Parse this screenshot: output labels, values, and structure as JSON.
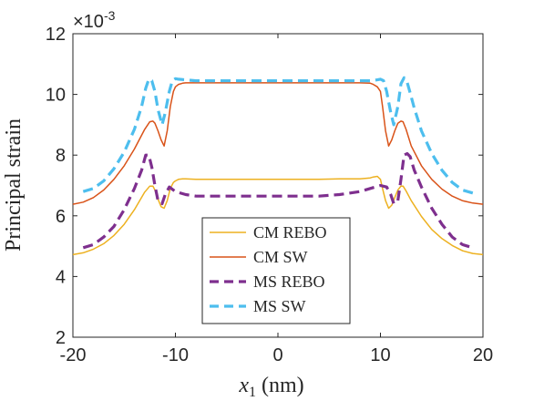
{
  "chart_data": {
    "type": "line",
    "xlabel_var": "x",
    "xlabel_sub": "1",
    "xlabel_unit": " (nm)",
    "ylabel": "Principal strain",
    "scale_prefix": "×10",
    "scale_exp": "-3",
    "xlim": [
      -20,
      20
    ],
    "ylim": [
      2,
      12
    ],
    "xticks": [
      -20,
      -10,
      0,
      10,
      20
    ],
    "yticks": [
      2,
      4,
      6,
      8,
      10,
      12
    ],
    "grid": false,
    "legend_position": "bottom-center",
    "series": [
      {
        "name": "CM REBO",
        "color": "#EDB120",
        "style": "solid",
        "x": [
          -20,
          -19,
          -18,
          -17,
          -16,
          -15,
          -14,
          -13,
          -12.5,
          -12.2,
          -12,
          -11.7,
          -11.4,
          -11.1,
          -10.8,
          -10.5,
          -10.2,
          -10,
          -9.7,
          -9.3,
          -9,
          -8,
          -6,
          -4,
          -2,
          0,
          2,
          4,
          6,
          8,
          9,
          9.3,
          9.7,
          10,
          10.2,
          10.5,
          10.8,
          11.1,
          11.4,
          11.7,
          12,
          12.2,
          12.5,
          13,
          14,
          15,
          16,
          17,
          18,
          19,
          20
        ],
        "y": [
          4.72,
          4.78,
          4.9,
          5.08,
          5.35,
          5.72,
          6.2,
          6.78,
          6.98,
          6.98,
          6.85,
          6.55,
          6.3,
          6.25,
          6.5,
          6.9,
          7.1,
          7.15,
          7.2,
          7.22,
          7.22,
          7.2,
          7.2,
          7.2,
          7.2,
          7.2,
          7.2,
          7.2,
          7.22,
          7.22,
          7.25,
          7.28,
          7.3,
          7.2,
          6.9,
          6.5,
          6.25,
          6.35,
          6.6,
          6.85,
          6.98,
          6.98,
          6.82,
          6.5,
          5.98,
          5.55,
          5.25,
          5.02,
          4.85,
          4.76,
          4.72
        ]
      },
      {
        "name": "CM SW",
        "color": "#D95319",
        "style": "solid",
        "x": [
          -20,
          -19,
          -18,
          -17,
          -16,
          -15,
          -14,
          -13,
          -12.5,
          -12.2,
          -12,
          -11.7,
          -11.4,
          -11.1,
          -10.8,
          -10.5,
          -10.2,
          -10,
          -9.7,
          -9.3,
          -9,
          -8,
          -6,
          -4,
          -2,
          0,
          2,
          4,
          6,
          8,
          9,
          9.3,
          9.7,
          10,
          10.2,
          10.5,
          10.8,
          11.1,
          11.4,
          11.7,
          12,
          12.2,
          12.5,
          13,
          14,
          15,
          16,
          17,
          18,
          19,
          20
        ],
        "y": [
          6.38,
          6.45,
          6.6,
          6.85,
          7.2,
          7.65,
          8.2,
          8.85,
          9.1,
          9.12,
          9.05,
          8.8,
          8.5,
          8.3,
          8.8,
          9.6,
          10.1,
          10.25,
          10.33,
          10.37,
          10.38,
          10.38,
          10.38,
          10.38,
          10.38,
          10.38,
          10.38,
          10.38,
          10.38,
          10.38,
          10.37,
          10.33,
          10.25,
          10.1,
          9.6,
          8.8,
          8.3,
          8.5,
          8.8,
          9.05,
          9.12,
          9.1,
          8.85,
          8.3,
          7.65,
          7.2,
          6.88,
          6.65,
          6.5,
          6.42,
          6.38
        ]
      },
      {
        "name": "MS REBO",
        "color": "#7E2F8E",
        "style": "dashed",
        "x": [
          -19,
          -18,
          -17,
          -16,
          -15,
          -14,
          -13.3,
          -12.9,
          -12.6,
          -12.3,
          -12,
          -11.7,
          -11.3,
          -11,
          -10.6,
          -10,
          -9,
          -8,
          -6,
          -4,
          -2,
          0,
          2,
          4,
          6,
          8,
          9,
          10,
          10.6,
          11,
          11.3,
          11.7,
          12,
          12.3,
          12.6,
          12.9,
          13.3,
          14,
          15,
          16,
          17,
          18,
          19
        ],
        "y": [
          4.95,
          5.05,
          5.3,
          5.65,
          6.2,
          6.9,
          7.5,
          8.0,
          8.0,
          7.6,
          7.0,
          6.5,
          6.4,
          6.7,
          6.95,
          6.8,
          6.7,
          6.65,
          6.65,
          6.65,
          6.65,
          6.65,
          6.65,
          6.65,
          6.7,
          6.8,
          6.9,
          7.0,
          6.95,
          6.7,
          6.4,
          6.5,
          7.2,
          8.0,
          8.05,
          7.95,
          7.5,
          6.95,
          6.25,
          5.72,
          5.3,
          5.05,
          4.95
        ]
      },
      {
        "name": "MS SW",
        "color": "#4DBEEE",
        "style": "dashed",
        "x": [
          -19,
          -18,
          -17,
          -16,
          -15,
          -14,
          -13.3,
          -12.9,
          -12.6,
          -12.3,
          -12,
          -11.7,
          -11.3,
          -11,
          -10.6,
          -10.3,
          -10,
          -9.7,
          -9,
          -8,
          -6,
          -4,
          -2,
          0,
          2,
          4,
          6,
          8,
          9,
          9.7,
          10,
          10.3,
          10.6,
          11,
          11.3,
          11.7,
          12,
          12.3,
          12.6,
          12.9,
          13.3,
          14,
          15,
          16,
          17,
          18,
          19
        ],
        "y": [
          6.8,
          6.9,
          7.15,
          7.55,
          8.1,
          8.85,
          9.6,
          10.2,
          10.5,
          10.45,
          10.1,
          9.5,
          9.0,
          9.4,
          10.1,
          10.45,
          10.52,
          10.5,
          10.48,
          10.45,
          10.45,
          10.45,
          10.45,
          10.45,
          10.45,
          10.45,
          10.45,
          10.45,
          10.45,
          10.48,
          10.5,
          10.45,
          10.1,
          9.4,
          9.0,
          9.6,
          10.35,
          10.55,
          10.4,
          10.05,
          9.55,
          8.8,
          8.05,
          7.5,
          7.1,
          6.85,
          6.75
        ]
      }
    ]
  }
}
